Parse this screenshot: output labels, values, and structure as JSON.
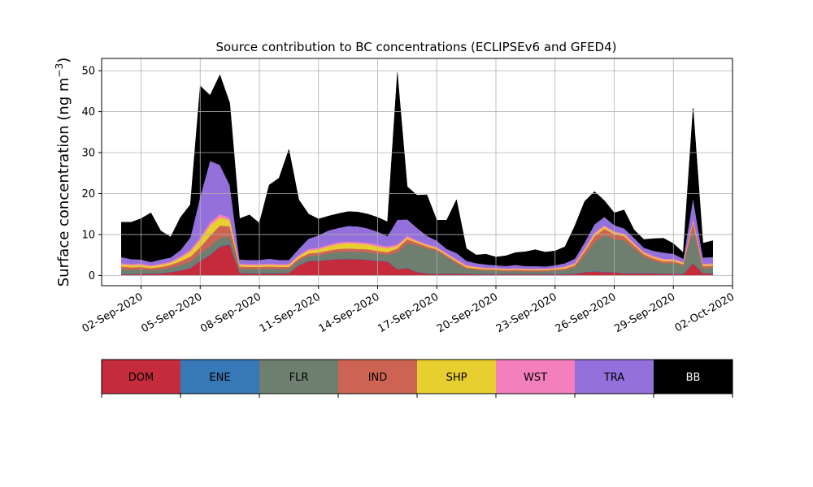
{
  "chart_data": {
    "type": "area",
    "stacked": true,
    "title": "Source contribution to BC concentrations (ECLIPSEv6 and GFED4)",
    "ylabel": "Surface concentration (ng m",
    "ylabel_superscript": "−3",
    "ylabel_close": ")",
    "ylim": [
      -2.5,
      53
    ],
    "yticks": [
      0,
      10,
      20,
      30,
      40,
      50
    ],
    "x_date_start": "2020-09-01",
    "xlim_days": [
      -1.0,
      31.0
    ],
    "xtick_labels": [
      "02-Sep-2020",
      "05-Sep-2020",
      "08-Sep-2020",
      "11-Sep-2020",
      "14-Sep-2020",
      "17-Sep-2020",
      "20-Sep-2020",
      "23-Sep-2020",
      "26-Sep-2020",
      "29-Sep-2020",
      "02-Oct-2020"
    ],
    "grid": true,
    "x_days": [
      0.0,
      0.5,
      1.0,
      1.5,
      2.0,
      2.5,
      3.0,
      3.5,
      4.0,
      4.5,
      5.0,
      5.5,
      6.0,
      6.5,
      7.0,
      7.5,
      8.0,
      8.5,
      9.0,
      9.5,
      10.0,
      10.5,
      11.0,
      11.5,
      12.0,
      12.5,
      13.0,
      13.5,
      14.0,
      14.5,
      15.0,
      15.5,
      16.0,
      16.5,
      17.0,
      17.5,
      18.0,
      18.5,
      19.0,
      19.5,
      20.0,
      20.5,
      21.0,
      21.5,
      22.0,
      22.5,
      23.0,
      23.5,
      24.0,
      24.5,
      25.0,
      25.5,
      26.0,
      26.5,
      27.0,
      27.5,
      28.0,
      28.5,
      29.0,
      29.5,
      30.0
    ],
    "series": [
      {
        "name": "DOM",
        "color": "#c62b3b",
        "values": [
          0.3,
          0.3,
          0.4,
          0.4,
          0.5,
          0.8,
          1.2,
          1.8,
          3.5,
          5.0,
          7.0,
          7.5,
          0.6,
          0.5,
          0.5,
          0.5,
          0.5,
          0.6,
          2.5,
          3.5,
          3.6,
          3.8,
          4.0,
          4.0,
          4.0,
          3.8,
          3.6,
          3.4,
          1.5,
          1.8,
          0.8,
          0.5,
          0.4,
          0.4,
          0.4,
          0.4,
          0.3,
          0.3,
          0.3,
          0.3,
          0.3,
          0.3,
          0.3,
          0.3,
          0.3,
          0.3,
          0.4,
          0.8,
          1.0,
          0.8,
          0.8,
          0.5,
          0.5,
          0.5,
          0.5,
          0.4,
          0.4,
          0.3,
          3.0,
          0.5,
          0.5
        ]
      },
      {
        "name": "ENE",
        "color": "#3778b6",
        "values": [
          0.1,
          0.1,
          0.1,
          0.1,
          0.1,
          0.1,
          0.1,
          0.1,
          0.1,
          0.2,
          0.2,
          0.2,
          0.1,
          0.1,
          0.1,
          0.1,
          0.1,
          0.1,
          0.1,
          0.1,
          0.1,
          0.1,
          0.1,
          0.1,
          0.1,
          0.1,
          0.1,
          0.1,
          0.1,
          0.1,
          0.1,
          0.1,
          0.1,
          0.1,
          0.1,
          0.1,
          0.1,
          0.1,
          0.1,
          0.1,
          0.1,
          0.1,
          0.1,
          0.1,
          0.1,
          0.1,
          0.1,
          0.1,
          0.1,
          0.1,
          0.1,
          0.1,
          0.1,
          0.1,
          0.1,
          0.1,
          0.1,
          0.1,
          0.1,
          0.1,
          0.1
        ]
      },
      {
        "name": "FLR",
        "color": "#6e7f6f",
        "values": [
          1.2,
          1.0,
          1.0,
          0.8,
          0.9,
          1.0,
          1.3,
          1.5,
          1.8,
          2.0,
          2.0,
          1.8,
          1.0,
          1.0,
          1.0,
          1.1,
          1.0,
          0.9,
          1.0,
          1.2,
          1.3,
          1.5,
          1.7,
          1.8,
          1.7,
          1.8,
          1.6,
          1.6,
          4.0,
          6.0,
          6.5,
          6.0,
          5.5,
          4.0,
          2.5,
          1.2,
          1.0,
          0.8,
          0.8,
          0.6,
          0.7,
          0.6,
          0.6,
          0.6,
          0.8,
          0.9,
          1.5,
          4.0,
          7.0,
          9.0,
          8.0,
          8.0,
          6.0,
          4.0,
          3.0,
          2.5,
          2.5,
          2.0,
          8.0,
          1.2,
          1.3
        ]
      },
      {
        "name": "IND",
        "color": "#cd6453",
        "values": [
          0.6,
          0.6,
          0.6,
          0.5,
          0.6,
          0.7,
          0.9,
          1.2,
          1.5,
          2.5,
          3.0,
          2.5,
          0.5,
          0.5,
          0.5,
          0.5,
          0.5,
          0.5,
          0.6,
          0.6,
          0.6,
          0.7,
          0.7,
          0.7,
          0.7,
          0.7,
          0.7,
          0.6,
          1.0,
          1.0,
          0.6,
          0.5,
          0.4,
          0.4,
          0.4,
          0.3,
          0.3,
          0.3,
          0.3,
          0.3,
          0.3,
          0.3,
          0.3,
          0.3,
          0.3,
          0.4,
          0.5,
          1.0,
          1.5,
          1.5,
          1.2,
          1.0,
          0.8,
          0.6,
          0.6,
          0.5,
          0.5,
          0.4,
          2.0,
          0.5,
          0.5
        ]
      },
      {
        "name": "SHP",
        "color": "#e7cf2f",
        "values": [
          0.5,
          0.5,
          0.5,
          0.4,
          0.5,
          0.5,
          0.8,
          1.2,
          1.8,
          2.5,
          2.0,
          1.5,
          0.4,
          0.4,
          0.4,
          0.4,
          0.4,
          0.4,
          0.5,
          0.7,
          0.8,
          1.0,
          1.2,
          1.3,
          1.3,
          1.2,
          1.1,
          1.0,
          0.6,
          0.4,
          0.3,
          0.3,
          0.3,
          0.3,
          0.3,
          0.3,
          0.3,
          0.2,
          0.2,
          0.2,
          0.2,
          0.2,
          0.2,
          0.2,
          0.2,
          0.3,
          0.3,
          0.4,
          0.5,
          0.5,
          0.4,
          0.4,
          0.3,
          0.3,
          0.3,
          0.3,
          0.3,
          0.3,
          0.4,
          0.3,
          0.3
        ]
      },
      {
        "name": "WST",
        "color": "#f47fbd",
        "values": [
          0.3,
          0.3,
          0.3,
          0.3,
          0.3,
          0.3,
          0.4,
          0.5,
          0.6,
          0.8,
          0.8,
          0.6,
          0.3,
          0.3,
          0.3,
          0.3,
          0.3,
          0.3,
          0.3,
          0.4,
          0.4,
          0.4,
          0.4,
          0.4,
          0.4,
          0.4,
          0.4,
          0.4,
          0.4,
          0.4,
          0.3,
          0.3,
          0.3,
          0.3,
          0.3,
          0.3,
          0.2,
          0.2,
          0.2,
          0.2,
          0.2,
          0.2,
          0.2,
          0.2,
          0.2,
          0.2,
          0.3,
          0.3,
          0.4,
          0.4,
          0.3,
          0.3,
          0.3,
          0.3,
          0.3,
          0.3,
          0.3,
          0.2,
          0.4,
          0.3,
          0.3
        ]
      },
      {
        "name": "TRA",
        "color": "#9370db",
        "values": [
          1.5,
          1.2,
          1.0,
          0.8,
          1.0,
          1.0,
          1.5,
          3.0,
          10.0,
          15.0,
          12.0,
          8.0,
          1.0,
          1.0,
          1.0,
          1.2,
          1.0,
          1.0,
          1.5,
          2.5,
          3.0,
          3.5,
          3.5,
          3.8,
          3.8,
          3.5,
          3.2,
          2.5,
          6.0,
          4.0,
          3.0,
          2.0,
          1.5,
          1.0,
          1.5,
          1.0,
          0.8,
          0.8,
          0.6,
          0.6,
          0.8,
          0.6,
          0.6,
          0.5,
          0.6,
          0.8,
          1.0,
          1.5,
          2.0,
          2.0,
          1.5,
          1.2,
          1.2,
          1.0,
          1.2,
          1.5,
          1.2,
          0.8,
          5.0,
          1.5,
          1.5
        ]
      },
      {
        "name": "BB",
        "color": "#000000",
        "values": [
          8.5,
          9.0,
          10.0,
          12.0,
          7.0,
          5.0,
          8.0,
          8.0,
          27.0,
          16.0,
          22.0,
          20.0,
          10.0,
          11.0,
          9.0,
          18.0,
          20.0,
          27.0,
          12.0,
          6.0,
          4.0,
          3.5,
          3.5,
          3.5,
          3.5,
          3.5,
          3.5,
          3.5,
          36.0,
          8.0,
          8.0,
          10.0,
          5.0,
          7.0,
          13.0,
          3.0,
          2.0,
          2.5,
          2.0,
          2.5,
          3.0,
          3.5,
          4.0,
          3.5,
          3.5,
          4.0,
          8.0,
          10.0,
          8.0,
          4.0,
          3.0,
          4.5,
          2.0,
          2.0,
          3.0,
          3.5,
          2.5,
          1.5,
          22.0,
          3.5,
          4.0
        ]
      }
    ]
  }
}
